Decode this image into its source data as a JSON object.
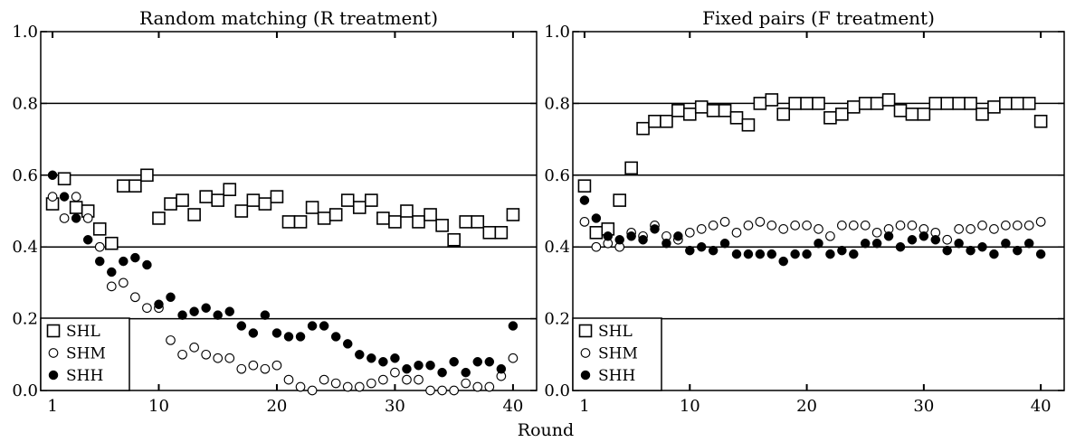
{
  "figure": {
    "xlabel": "Round"
  },
  "legend": {
    "items": [
      {
        "label": "SHL",
        "marker": "square"
      },
      {
        "label": "SHM",
        "marker": "circle-open"
      },
      {
        "label": "SHH",
        "marker": "circle-filled"
      }
    ]
  },
  "colors": {
    "ink": "#000000",
    "background": "#ffffff"
  },
  "chart_data": [
    {
      "type": "scatter",
      "title": "Random matching (R treatment)",
      "xlabel": "Round",
      "ylabel": "",
      "xlim": [
        0,
        42
      ],
      "ylim": [
        0,
        1
      ],
      "xticks": [
        1,
        10,
        20,
        30,
        40
      ],
      "yticks": [
        0.0,
        0.2,
        0.4,
        0.6,
        0.8,
        1.0
      ],
      "ytick_labels": [
        "0.0",
        "0.2",
        "0.4",
        "0.6",
        "0.8",
        "1.0"
      ],
      "grid": "horizontal lines at 0.2, 0.4, 0.6, 0.8",
      "legend_position": "bottom-left",
      "x": [
        1,
        2,
        3,
        4,
        5,
        6,
        7,
        8,
        9,
        10,
        11,
        12,
        13,
        14,
        15,
        16,
        17,
        18,
        19,
        20,
        21,
        22,
        23,
        24,
        25,
        26,
        27,
        28,
        29,
        30,
        31,
        32,
        33,
        34,
        35,
        36,
        37,
        38,
        39,
        40
      ],
      "series": [
        {
          "name": "SHL",
          "marker": "square",
          "values": [
            0.52,
            0.59,
            0.51,
            0.5,
            0.45,
            0.41,
            0.57,
            0.57,
            0.6,
            0.48,
            0.52,
            0.53,
            0.49,
            0.54,
            0.53,
            0.56,
            0.5,
            0.53,
            0.52,
            0.54,
            0.47,
            0.47,
            0.51,
            0.48,
            0.49,
            0.53,
            0.51,
            0.53,
            0.48,
            0.47,
            0.5,
            0.47,
            0.49,
            0.46,
            0.42,
            0.47,
            0.47,
            0.44,
            0.44,
            0.49
          ]
        },
        {
          "name": "SHM",
          "marker": "circle-open",
          "values": [
            0.54,
            0.48,
            0.54,
            0.48,
            0.4,
            0.29,
            0.3,
            0.26,
            0.23,
            0.23,
            0.14,
            0.1,
            0.12,
            0.1,
            0.09,
            0.09,
            0.06,
            0.07,
            0.06,
            0.07,
            0.03,
            0.01,
            0.0,
            0.03,
            0.02,
            0.01,
            0.01,
            0.02,
            0.03,
            0.05,
            0.03,
            0.03,
            0.0,
            0.0,
            0.0,
            0.02,
            0.01,
            0.01,
            0.04,
            0.09
          ]
        },
        {
          "name": "SHH",
          "marker": "circle-filled",
          "values": [
            0.6,
            0.54,
            0.48,
            0.42,
            0.36,
            0.33,
            0.36,
            0.37,
            0.35,
            0.24,
            0.26,
            0.21,
            0.22,
            0.23,
            0.21,
            0.22,
            0.18,
            0.16,
            0.21,
            0.16,
            0.15,
            0.15,
            0.18,
            0.18,
            0.15,
            0.13,
            0.1,
            0.09,
            0.08,
            0.09,
            0.06,
            0.07,
            0.07,
            0.05,
            0.08,
            0.05,
            0.08,
            0.08,
            0.06,
            0.18
          ]
        }
      ]
    },
    {
      "type": "scatter",
      "title": "Fixed pairs (F treatment)",
      "xlabel": "Round",
      "ylabel": "",
      "xlim": [
        0,
        42
      ],
      "ylim": [
        0,
        1
      ],
      "xticks": [
        1,
        10,
        20,
        30,
        40
      ],
      "yticks": [
        0.0,
        0.2,
        0.4,
        0.6,
        0.8,
        1.0
      ],
      "ytick_labels": [
        "0.0",
        "0.2",
        "0.4",
        "0.6",
        "0.8",
        "1.0"
      ],
      "grid": "horizontal lines at 0.2, 0.4, 0.6, 0.8",
      "legend_position": "bottom-left",
      "x": [
        1,
        2,
        3,
        4,
        5,
        6,
        7,
        8,
        9,
        10,
        11,
        12,
        13,
        14,
        15,
        16,
        17,
        18,
        19,
        20,
        21,
        22,
        23,
        24,
        25,
        26,
        27,
        28,
        29,
        30,
        31,
        32,
        33,
        34,
        35,
        36,
        37,
        38,
        39,
        40
      ],
      "series": [
        {
          "name": "SHL",
          "marker": "square",
          "values": [
            0.57,
            0.44,
            0.45,
            0.53,
            0.62,
            0.73,
            0.75,
            0.75,
            0.78,
            0.77,
            0.79,
            0.78,
            0.78,
            0.76,
            0.74,
            0.8,
            0.81,
            0.77,
            0.8,
            0.8,
            0.8,
            0.76,
            0.77,
            0.79,
            0.8,
            0.8,
            0.81,
            0.78,
            0.77,
            0.77,
            0.8,
            0.8,
            0.8,
            0.8,
            0.77,
            0.79,
            0.8,
            0.8,
            0.8,
            0.75
          ]
        },
        {
          "name": "SHM",
          "marker": "circle-open",
          "values": [
            0.47,
            0.4,
            0.41,
            0.4,
            0.44,
            0.43,
            0.46,
            0.43,
            0.42,
            0.44,
            0.45,
            0.46,
            0.47,
            0.44,
            0.46,
            0.47,
            0.46,
            0.45,
            0.46,
            0.46,
            0.45,
            0.43,
            0.46,
            0.46,
            0.46,
            0.44,
            0.45,
            0.46,
            0.46,
            0.45,
            0.44,
            0.42,
            0.45,
            0.45,
            0.46,
            0.45,
            0.46,
            0.46,
            0.46,
            0.47
          ]
        },
        {
          "name": "SHH",
          "marker": "circle-filled",
          "values": [
            0.53,
            0.48,
            0.43,
            0.42,
            0.43,
            0.42,
            0.45,
            0.41,
            0.43,
            0.39,
            0.4,
            0.39,
            0.41,
            0.38,
            0.38,
            0.38,
            0.38,
            0.36,
            0.38,
            0.38,
            0.41,
            0.38,
            0.39,
            0.38,
            0.41,
            0.41,
            0.43,
            0.4,
            0.42,
            0.43,
            0.42,
            0.39,
            0.41,
            0.39,
            0.4,
            0.38,
            0.41,
            0.39,
            0.41,
            0.38
          ]
        }
      ]
    }
  ]
}
